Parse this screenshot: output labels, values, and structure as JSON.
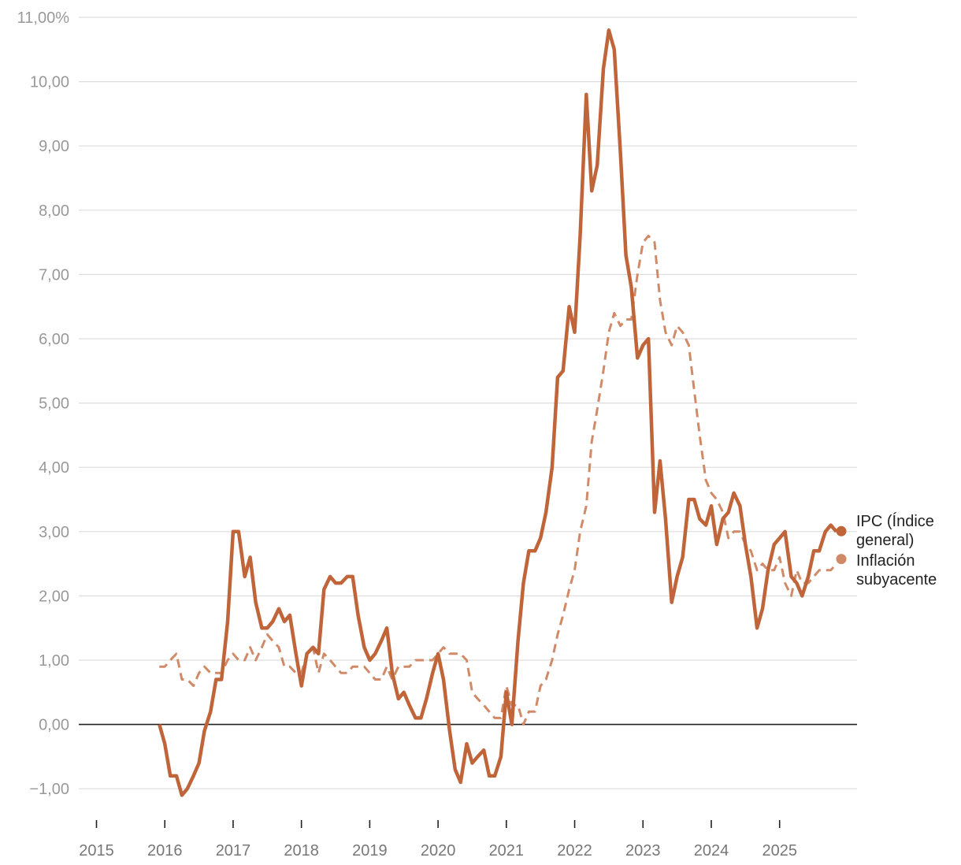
{
  "chart_data": {
    "type": "line",
    "title": "",
    "xlabel": "",
    "ylabel": "",
    "xlim": [
      2015,
      2026.07
    ],
    "ylim": [
      -1.5,
      11.0
    ],
    "y_ticks": [
      -1,
      0,
      1,
      2,
      3,
      4,
      5,
      6,
      7,
      8,
      9,
      10,
      11
    ],
    "y_tick_labels": [
      "−1,00",
      "0,00",
      "1,00",
      "2,00",
      "3,00",
      "4,00",
      "5,00",
      "6,00",
      "7,00",
      "8,00",
      "9,00",
      "10,00",
      "11,00%"
    ],
    "x_ticks": [
      2015,
      2016,
      2017,
      2018,
      2019,
      2020,
      2021,
      2022,
      2023,
      2024,
      2025
    ],
    "x_tick_labels": [
      "2015",
      "2016",
      "2017",
      "2018",
      "2019",
      "2020",
      "2021",
      "2022",
      "2023",
      "2024",
      "2025"
    ],
    "grid": true,
    "legend_position": "right-end",
    "series": [
      {
        "name": "IPC (Índice general)",
        "label_lines": [
          "IPC (Índice",
          "general)"
        ],
        "style": "solid",
        "color": "#c0643a",
        "points": [
          [
            2015.92,
            0.0
          ],
          [
            2016.0,
            -0.3
          ],
          [
            2016.08,
            -0.8
          ],
          [
            2016.17,
            -0.8
          ],
          [
            2016.25,
            -1.1
          ],
          [
            2016.33,
            -1.0
          ],
          [
            2016.42,
            -0.8
          ],
          [
            2016.5,
            -0.6
          ],
          [
            2016.58,
            -0.1
          ],
          [
            2016.67,
            0.2
          ],
          [
            2016.75,
            0.7
          ],
          [
            2016.83,
            0.7
          ],
          [
            2016.92,
            1.6
          ],
          [
            2017.0,
            3.0
          ],
          [
            2017.08,
            3.0
          ],
          [
            2017.17,
            2.3
          ],
          [
            2017.25,
            2.6
          ],
          [
            2017.33,
            1.9
          ],
          [
            2017.42,
            1.5
          ],
          [
            2017.5,
            1.5
          ],
          [
            2017.58,
            1.6
          ],
          [
            2017.67,
            1.8
          ],
          [
            2017.75,
            1.6
          ],
          [
            2017.83,
            1.7
          ],
          [
            2017.92,
            1.1
          ],
          [
            2018.0,
            0.6
          ],
          [
            2018.08,
            1.1
          ],
          [
            2018.17,
            1.2
          ],
          [
            2018.25,
            1.1
          ],
          [
            2018.33,
            2.1
          ],
          [
            2018.42,
            2.3
          ],
          [
            2018.5,
            2.2
          ],
          [
            2018.58,
            2.2
          ],
          [
            2018.67,
            2.3
          ],
          [
            2018.75,
            2.3
          ],
          [
            2018.83,
            1.7
          ],
          [
            2018.92,
            1.2
          ],
          [
            2019.0,
            1.0
          ],
          [
            2019.08,
            1.1
          ],
          [
            2019.17,
            1.3
          ],
          [
            2019.25,
            1.5
          ],
          [
            2019.33,
            0.8
          ],
          [
            2019.42,
            0.4
          ],
          [
            2019.5,
            0.5
          ],
          [
            2019.58,
            0.3
          ],
          [
            2019.67,
            0.1
          ],
          [
            2019.75,
            0.1
          ],
          [
            2019.83,
            0.4
          ],
          [
            2019.92,
            0.8
          ],
          [
            2020.0,
            1.1
          ],
          [
            2020.08,
            0.7
          ],
          [
            2020.17,
            -0.1
          ],
          [
            2020.25,
            -0.7
          ],
          [
            2020.33,
            -0.9
          ],
          [
            2020.42,
            -0.3
          ],
          [
            2020.5,
            -0.6
          ],
          [
            2020.58,
            -0.5
          ],
          [
            2020.67,
            -0.4
          ],
          [
            2020.75,
            -0.8
          ],
          [
            2020.83,
            -0.8
          ],
          [
            2020.92,
            -0.5
          ],
          [
            2021.0,
            0.5
          ],
          [
            2021.08,
            0.0
          ],
          [
            2021.17,
            1.3
          ],
          [
            2021.25,
            2.2
          ],
          [
            2021.33,
            2.7
          ],
          [
            2021.42,
            2.7
          ],
          [
            2021.5,
            2.9
          ],
          [
            2021.58,
            3.3
          ],
          [
            2021.67,
            4.0
          ],
          [
            2021.75,
            5.4
          ],
          [
            2021.83,
            5.5
          ],
          [
            2021.92,
            6.5
          ],
          [
            2022.0,
            6.1
          ],
          [
            2022.08,
            7.6
          ],
          [
            2022.17,
            9.8
          ],
          [
            2022.25,
            8.3
          ],
          [
            2022.33,
            8.7
          ],
          [
            2022.42,
            10.2
          ],
          [
            2022.5,
            10.8
          ],
          [
            2022.58,
            10.5
          ],
          [
            2022.67,
            8.9
          ],
          [
            2022.75,
            7.3
          ],
          [
            2022.83,
            6.8
          ],
          [
            2022.92,
            5.7
          ],
          [
            2023.0,
            5.9
          ],
          [
            2023.08,
            6.0
          ],
          [
            2023.17,
            3.3
          ],
          [
            2023.25,
            4.1
          ],
          [
            2023.33,
            3.2
          ],
          [
            2023.42,
            1.9
          ],
          [
            2023.5,
            2.3
          ],
          [
            2023.58,
            2.6
          ],
          [
            2023.67,
            3.5
          ],
          [
            2023.75,
            3.5
          ],
          [
            2023.83,
            3.2
          ],
          [
            2023.92,
            3.1
          ],
          [
            2024.0,
            3.4
          ],
          [
            2024.08,
            2.8
          ],
          [
            2024.17,
            3.2
          ],
          [
            2024.25,
            3.3
          ],
          [
            2024.33,
            3.6
          ],
          [
            2024.42,
            3.4
          ],
          [
            2024.5,
            2.8
          ],
          [
            2024.58,
            2.3
          ],
          [
            2024.67,
            1.5
          ],
          [
            2024.75,
            1.8
          ],
          [
            2024.83,
            2.4
          ],
          [
            2024.92,
            2.8
          ],
          [
            2025.0,
            2.9
          ],
          [
            2025.08,
            3.0
          ],
          [
            2025.17,
            2.3
          ],
          [
            2025.25,
            2.2
          ],
          [
            2025.33,
            2.0
          ],
          [
            2025.42,
            2.3
          ],
          [
            2025.5,
            2.7
          ],
          [
            2025.58,
            2.7
          ],
          [
            2025.67,
            3.0
          ],
          [
            2025.75,
            3.1
          ],
          [
            2025.83,
            3.0
          ]
        ]
      },
      {
        "name": "Inflación subyacente",
        "label_lines": [
          "Inflación",
          "subyacente"
        ],
        "style": "dashed",
        "color": "#d08a68",
        "points": [
          [
            2015.92,
            0.9
          ],
          [
            2016.0,
            0.9
          ],
          [
            2016.08,
            1.0
          ],
          [
            2016.17,
            1.1
          ],
          [
            2016.25,
            0.7
          ],
          [
            2016.33,
            0.7
          ],
          [
            2016.42,
            0.6
          ],
          [
            2016.5,
            0.8
          ],
          [
            2016.58,
            0.9
          ],
          [
            2016.67,
            0.8
          ],
          [
            2016.75,
            0.8
          ],
          [
            2016.83,
            0.8
          ],
          [
            2016.92,
            1.0
          ],
          [
            2017.0,
            1.1
          ],
          [
            2017.08,
            1.0
          ],
          [
            2017.17,
            1.0
          ],
          [
            2017.25,
            1.2
          ],
          [
            2017.33,
            1.0
          ],
          [
            2017.42,
            1.2
          ],
          [
            2017.5,
            1.4
          ],
          [
            2017.58,
            1.3
          ],
          [
            2017.67,
            1.2
          ],
          [
            2017.75,
            0.9
          ],
          [
            2017.83,
            0.9
          ],
          [
            2017.92,
            0.8
          ],
          [
            2018.0,
            0.8
          ],
          [
            2018.08,
            1.1
          ],
          [
            2018.17,
            1.2
          ],
          [
            2018.25,
            0.8
          ],
          [
            2018.33,
            1.1
          ],
          [
            2018.42,
            1.0
          ],
          [
            2018.5,
            0.9
          ],
          [
            2018.58,
            0.8
          ],
          [
            2018.67,
            0.8
          ],
          [
            2018.75,
            0.9
          ],
          [
            2018.83,
            0.9
          ],
          [
            2018.92,
            0.9
          ],
          [
            2019.0,
            0.8
          ],
          [
            2019.08,
            0.7
          ],
          [
            2019.17,
            0.7
          ],
          [
            2019.25,
            0.9
          ],
          [
            2019.33,
            0.7
          ],
          [
            2019.42,
            0.9
          ],
          [
            2019.5,
            0.9
          ],
          [
            2019.58,
            0.9
          ],
          [
            2019.67,
            1.0
          ],
          [
            2019.75,
            1.0
          ],
          [
            2019.83,
            1.0
          ],
          [
            2019.92,
            1.0
          ],
          [
            2020.0,
            1.1
          ],
          [
            2020.08,
            1.2
          ],
          [
            2020.17,
            1.1
          ],
          [
            2020.25,
            1.1
          ],
          [
            2020.33,
            1.1
          ],
          [
            2020.42,
            1.0
          ],
          [
            2020.5,
            0.5
          ],
          [
            2020.58,
            0.4
          ],
          [
            2020.67,
            0.3
          ],
          [
            2020.75,
            0.2
          ],
          [
            2020.83,
            0.1
          ],
          [
            2020.92,
            0.1
          ],
          [
            2021.0,
            0.6
          ],
          [
            2021.08,
            0.3
          ],
          [
            2021.17,
            0.3
          ],
          [
            2021.25,
            0.0
          ],
          [
            2021.33,
            0.2
          ],
          [
            2021.42,
            0.2
          ],
          [
            2021.5,
            0.6
          ],
          [
            2021.58,
            0.7
          ],
          [
            2021.67,
            1.0
          ],
          [
            2021.75,
            1.4
          ],
          [
            2021.83,
            1.7
          ],
          [
            2021.92,
            2.1
          ],
          [
            2022.0,
            2.4
          ],
          [
            2022.08,
            3.0
          ],
          [
            2022.17,
            3.4
          ],
          [
            2022.25,
            4.4
          ],
          [
            2022.33,
            4.9
          ],
          [
            2022.42,
            5.5
          ],
          [
            2022.5,
            6.1
          ],
          [
            2022.58,
            6.4
          ],
          [
            2022.67,
            6.2
          ],
          [
            2022.75,
            6.3
          ],
          [
            2022.83,
            6.3
          ],
          [
            2022.92,
            7.0
          ],
          [
            2023.0,
            7.5
          ],
          [
            2023.08,
            7.6
          ],
          [
            2023.17,
            7.5
          ],
          [
            2023.25,
            6.6
          ],
          [
            2023.33,
            6.1
          ],
          [
            2023.42,
            5.9
          ],
          [
            2023.5,
            6.2
          ],
          [
            2023.58,
            6.1
          ],
          [
            2023.67,
            5.9
          ],
          [
            2023.75,
            5.2
          ],
          [
            2023.83,
            4.5
          ],
          [
            2023.92,
            3.8
          ],
          [
            2024.0,
            3.6
          ],
          [
            2024.08,
            3.5
          ],
          [
            2024.17,
            3.3
          ],
          [
            2024.25,
            2.9
          ],
          [
            2024.33,
            3.0
          ],
          [
            2024.42,
            3.0
          ],
          [
            2024.5,
            2.8
          ],
          [
            2024.58,
            2.7
          ],
          [
            2024.67,
            2.4
          ],
          [
            2024.75,
            2.5
          ],
          [
            2024.83,
            2.4
          ],
          [
            2024.92,
            2.4
          ],
          [
            2025.0,
            2.6
          ],
          [
            2025.08,
            2.2
          ],
          [
            2025.17,
            2.0
          ],
          [
            2025.25,
            2.4
          ],
          [
            2025.33,
            2.2
          ],
          [
            2025.42,
            2.2
          ],
          [
            2025.5,
            2.3
          ],
          [
            2025.58,
            2.4
          ],
          [
            2025.67,
            2.4
          ],
          [
            2025.75,
            2.4
          ],
          [
            2025.83,
            2.5
          ]
        ]
      }
    ]
  }
}
